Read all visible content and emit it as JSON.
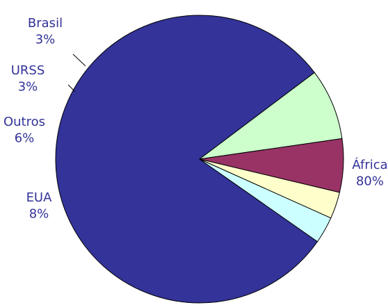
{
  "chart_data": {
    "type": "pie",
    "title": "",
    "slices": [
      {
        "label": "África",
        "value": 80,
        "value_label": "80%",
        "color": "#333399"
      },
      {
        "label": "EUA",
        "value": 8,
        "value_label": "8%",
        "color": "#CCFFCC"
      },
      {
        "label": "Outros",
        "value": 6,
        "value_label": "6%",
        "color": "#993366"
      },
      {
        "label": "URSS",
        "value": 3,
        "value_label": "3%",
        "color": "#FFFFCC"
      },
      {
        "label": "Brasil",
        "value": 3,
        "value_label": "3%",
        "color": "#CCFFFF"
      }
    ],
    "legend": "none",
    "label_color": "#333399"
  }
}
